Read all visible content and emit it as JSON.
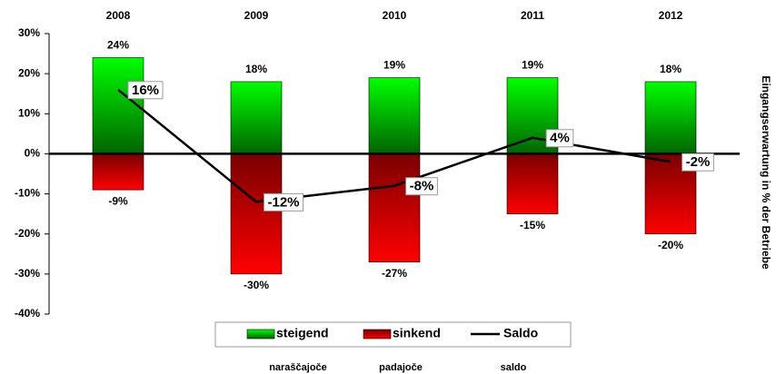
{
  "chart_data": {
    "type": "bar",
    "categories": [
      "2008",
      "2009",
      "2010",
      "2011",
      "2012"
    ],
    "series": [
      {
        "name": "steigend",
        "color": "#00cc00",
        "values": [
          24,
          18,
          19,
          19,
          18
        ],
        "value_labels": [
          "24%",
          "18%",
          "19%",
          "19%",
          "18%"
        ]
      },
      {
        "name": "sinkend",
        "color": "#cc0000",
        "values": [
          -9,
          -30,
          -27,
          -15,
          -20
        ],
        "value_labels": [
          "-9%",
          "-30%",
          "-27%",
          "-15%",
          "-20%"
        ]
      },
      {
        "name": "Saldo",
        "color": "#000000",
        "type": "line",
        "values": [
          16,
          -12,
          -8,
          4,
          -2
        ],
        "value_labels": [
          "16%",
          "-12%",
          "-8%",
          "4%",
          "-2%"
        ]
      }
    ],
    "ylim": [
      -40,
      30
    ],
    "yticks": [
      {
        "value": -40,
        "label": "-40%"
      },
      {
        "value": -30,
        "label": "-30%"
      },
      {
        "value": -20,
        "label": "-20%"
      },
      {
        "value": -10,
        "label": "-10%"
      },
      {
        "value": 0,
        "label": "0%"
      },
      {
        "value": 10,
        "label": "10%"
      },
      {
        "value": 20,
        "label": "20%"
      },
      {
        "value": 30,
        "label": "30%"
      }
    ],
    "y2_label": "Eingangserwartung in % der Betriebe",
    "annotations": [
      "naraščajoče",
      "padajoče",
      "saldo"
    ],
    "legend": "bottom"
  }
}
